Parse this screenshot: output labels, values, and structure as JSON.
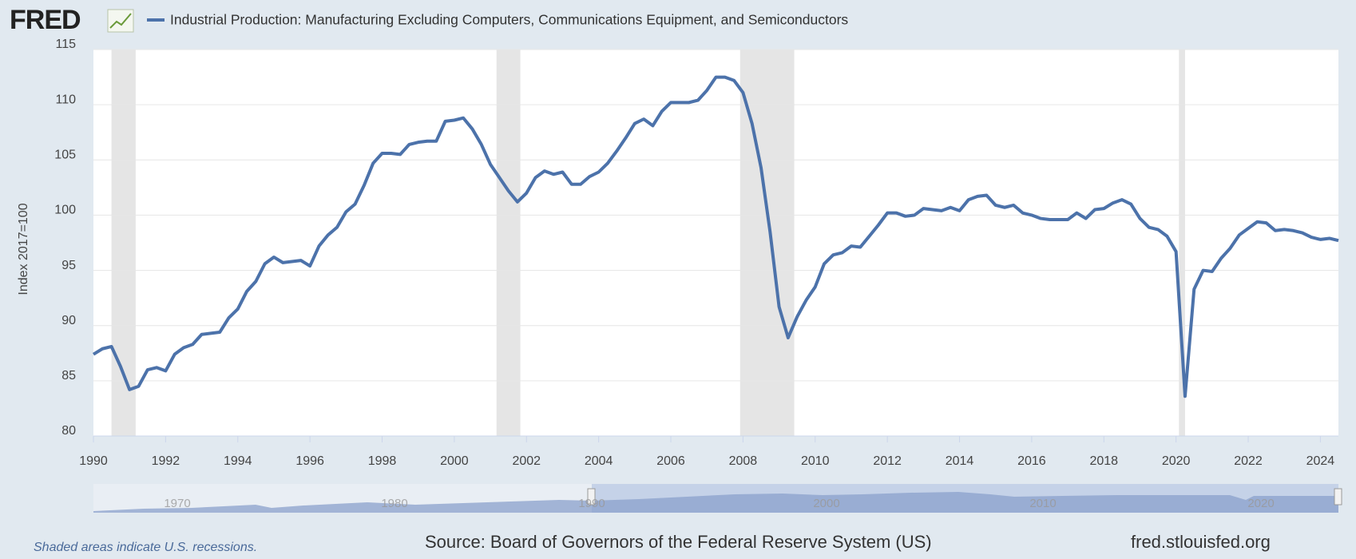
{
  "header": {
    "logo": "FRED"
  },
  "chart_data": {
    "type": "line",
    "series": [
      {
        "name": "Industrial Production: Manufacturing Excluding Computers, Communications Equipment, and Semiconductors",
        "color": "#4c72aa",
        "values": [
          87.4,
          87.9,
          88.1,
          86.3,
          84.2,
          84.5,
          86.0,
          86.2,
          85.9,
          87.4,
          88.0,
          88.3,
          89.2,
          89.3,
          89.4,
          90.7,
          91.5,
          93.1,
          94.0,
          95.6,
          96.2,
          95.7,
          95.8,
          95.9,
          95.4,
          97.2,
          98.2,
          98.9,
          100.3,
          101.0,
          102.7,
          104.7,
          105.6,
          105.6,
          105.5,
          106.4,
          106.6,
          106.7,
          106.7,
          108.5,
          108.6,
          108.8,
          107.8,
          106.4,
          104.6,
          103.4,
          102.2,
          101.2,
          102.0,
          103.4,
          104.0,
          103.7,
          103.9,
          102.8,
          102.8,
          103.5,
          103.9,
          104.7,
          105.8,
          107.0,
          108.3,
          108.7,
          108.1,
          109.4,
          110.2,
          110.2,
          110.2,
          110.4,
          111.3,
          112.5,
          112.5,
          112.2,
          111.1,
          108.3,
          104.3,
          98.5,
          91.7,
          88.9,
          90.8,
          92.3,
          93.5,
          95.6,
          96.4,
          96.6,
          97.2,
          97.1,
          98.1,
          99.1,
          100.2,
          100.2,
          99.9,
          100.0,
          100.6,
          100.5,
          100.4,
          100.7,
          100.4,
          101.4,
          101.7,
          101.8,
          100.9,
          100.7,
          100.9,
          100.2,
          100.0,
          99.7,
          99.6,
          99.6,
          99.6,
          100.2,
          99.7,
          100.5,
          100.6,
          101.1,
          101.4,
          101.0,
          99.7,
          98.9,
          98.7,
          98.1,
          96.7,
          83.6,
          93.3,
          95.0,
          94.9,
          96.1,
          97.0,
          98.2,
          98.8,
          99.4,
          99.3,
          98.6,
          98.7,
          98.6,
          98.4,
          98.0,
          97.8,
          97.9,
          97.7
        ]
      }
    ],
    "x": [
      1990,
      1990.25,
      1990.5,
      1990.75,
      1991,
      1991.25,
      1991.5,
      1991.75,
      1992,
      1992.25,
      1992.5,
      1992.75,
      1993,
      1993.25,
      1993.5,
      1993.75,
      1994,
      1994.25,
      1994.5,
      1994.75,
      1995,
      1995.25,
      1995.5,
      1995.75,
      1996,
      1996.25,
      1996.5,
      1996.75,
      1997,
      1997.25,
      1997.5,
      1997.75,
      1998,
      1998.25,
      1998.5,
      1998.75,
      1999,
      1999.25,
      1999.5,
      1999.75,
      2000,
      2000.25,
      2000.5,
      2000.75,
      2001,
      2001.25,
      2001.5,
      2001.75,
      2002,
      2002.25,
      2002.5,
      2002.75,
      2003,
      2003.25,
      2003.5,
      2003.75,
      2004,
      2004.25,
      2004.5,
      2004.75,
      2005,
      2005.25,
      2005.5,
      2005.75,
      2006,
      2006.25,
      2006.5,
      2006.75,
      2007,
      2007.25,
      2007.5,
      2007.75,
      2008,
      2008.25,
      2008.5,
      2008.75,
      2009,
      2009.25,
      2009.5,
      2009.75,
      2010,
      2010.25,
      2010.5,
      2010.75,
      2011,
      2011.25,
      2011.5,
      2011.75,
      2012,
      2012.25,
      2012.5,
      2012.75,
      2013,
      2013.25,
      2013.5,
      2013.75,
      2014,
      2014.25,
      2014.5,
      2014.75,
      2015,
      2015.25,
      2015.5,
      2015.75,
      2016,
      2016.25,
      2016.5,
      2016.75,
      2017,
      2017.25,
      2017.5,
      2017.75,
      2018,
      2018.25,
      2018.5,
      2018.75,
      2019,
      2019.25,
      2019.5,
      2019.75,
      2020,
      2020.25,
      2020.5,
      2020.75,
      2021,
      2021.25,
      2021.5,
      2021.75,
      2022,
      2022.25,
      2022.5,
      2022.75,
      2023,
      2023.25,
      2023.5,
      2023.75,
      2024,
      2024.25,
      2024.5
    ],
    "recessions": [
      [
        1990.5,
        1991.17
      ],
      [
        2001.17,
        2001.83
      ],
      [
        2007.92,
        2009.42
      ],
      [
        2020.08,
        2020.25
      ]
    ],
    "recession_color": "#e5e5e5",
    "ylabel": "Index 2017=100",
    "xlim": [
      1990,
      2024.5
    ],
    "ylim": [
      80,
      115
    ],
    "xticks": [
      1990,
      1992,
      1994,
      1996,
      1998,
      2000,
      2002,
      2004,
      2006,
      2008,
      2010,
      2012,
      2014,
      2016,
      2018,
      2020,
      2022,
      2024
    ],
    "yticks": [
      80,
      85,
      90,
      95,
      100,
      105,
      110,
      115
    ],
    "grid": true,
    "navigator_labels": [
      "1970",
      "1980",
      "1990",
      "2000",
      "2010",
      "2020"
    ]
  },
  "footer": {
    "note": "Shaded areas indicate U.S. recessions.",
    "source": "Source: Board of Governors of the Federal Reserve System (US)",
    "site": "fred.stlouisfed.org"
  }
}
